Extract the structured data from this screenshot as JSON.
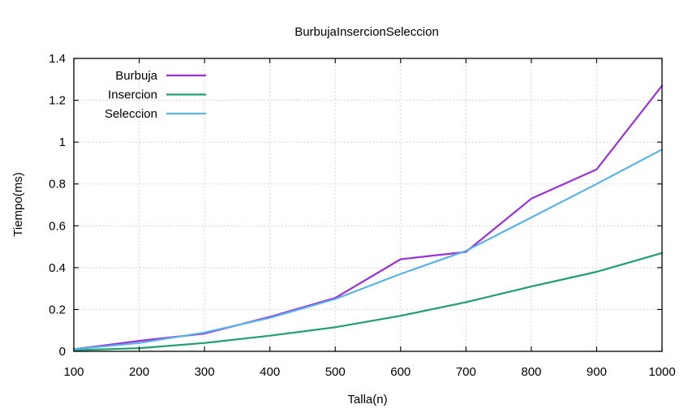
{
  "chart_data": {
    "type": "line",
    "title": "BurbujaInsercionSeleccion",
    "xlabel": "Talla(n)",
    "ylabel": "Tiempo(ms)",
    "xlim": [
      100,
      1000
    ],
    "ylim": [
      0,
      1.4
    ],
    "x_ticks": [
      100,
      200,
      300,
      400,
      500,
      600,
      700,
      800,
      900,
      1000
    ],
    "y_ticks": [
      0,
      0.2,
      0.4,
      0.6,
      0.8,
      1,
      1.2,
      1.4
    ],
    "x_tick_labels": [
      "100",
      "200",
      "300",
      "400",
      "500",
      "600",
      "700",
      "800",
      "900",
      "1000"
    ],
    "y_tick_labels": [
      "0",
      "0.2",
      "0.4",
      "0.6",
      "0.8",
      "1",
      "1.2",
      "1.4"
    ],
    "grid": true,
    "legend_position": "top-left",
    "x": [
      100,
      200,
      300,
      400,
      500,
      600,
      700,
      800,
      900,
      1000
    ],
    "series": [
      {
        "name": "Burbuja",
        "color": "#9b30d9",
        "values": [
          0.01,
          0.05,
          0.085,
          0.165,
          0.255,
          0.44,
          0.475,
          0.73,
          0.87,
          1.27
        ]
      },
      {
        "name": "Insercion",
        "color": "#1f9e6e",
        "values": [
          0.005,
          0.015,
          0.04,
          0.075,
          0.115,
          0.17,
          0.235,
          0.31,
          0.38,
          0.47
        ]
      },
      {
        "name": "Seleccion",
        "color": "#56b4e9",
        "values": [
          0.01,
          0.04,
          0.09,
          0.16,
          0.25,
          0.37,
          0.48,
          0.64,
          0.8,
          0.965
        ]
      }
    ]
  }
}
